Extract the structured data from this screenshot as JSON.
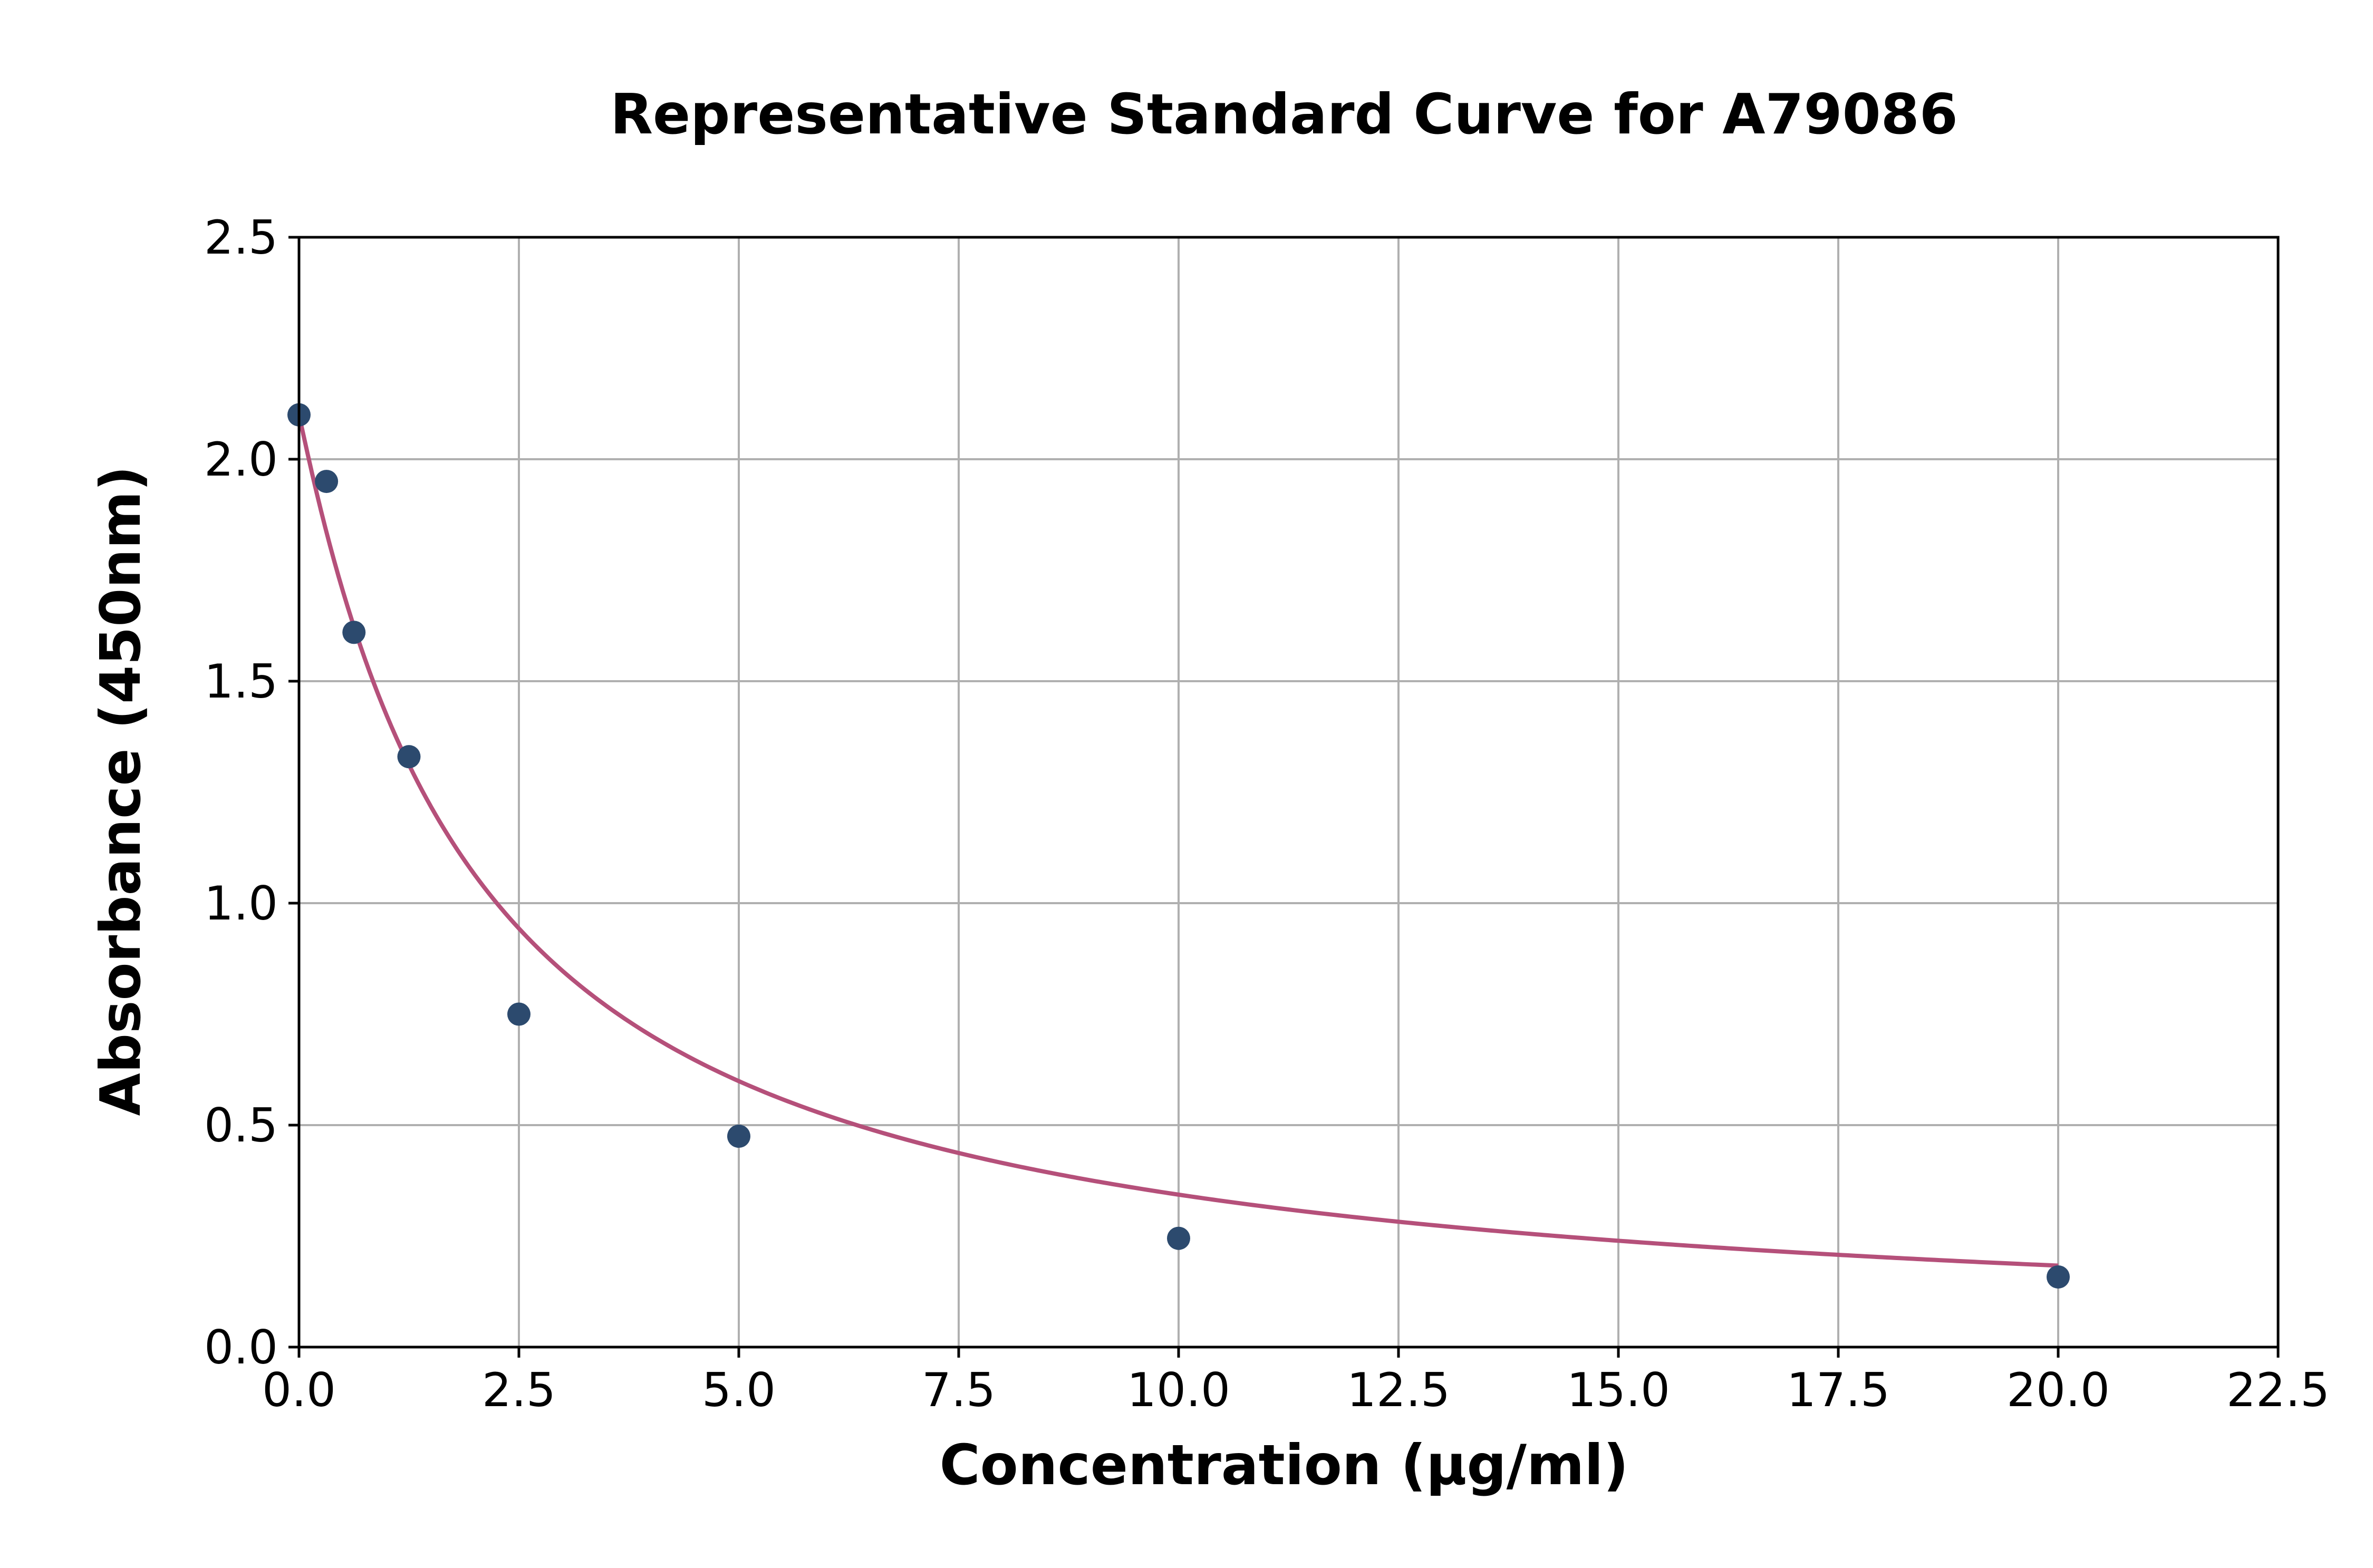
{
  "chart_data": {
    "type": "scatter",
    "title": "Representative Standard Curve for A79086",
    "xlabel": "Concentration (μg/ml)",
    "ylabel": "Absorbance (450nm)",
    "xlim": [
      0,
      22.5
    ],
    "ylim": [
      0,
      2.5
    ],
    "xticks": [
      "0.0",
      "2.5",
      "5.0",
      "7.5",
      "10.0",
      "12.5",
      "15.0",
      "17.5",
      "20.0",
      "22.5"
    ],
    "yticks": [
      "0.0",
      "0.5",
      "1.0",
      "1.5",
      "2.0",
      "2.5"
    ],
    "grid": true,
    "legend": "none",
    "series": [
      {
        "kind": "points",
        "color": "#2c4a6e",
        "x": [
          0,
          0.3125,
          0.625,
          1.25,
          2.5,
          5,
          10,
          20
        ],
        "y": [
          2.1,
          1.95,
          1.61,
          1.33,
          0.75,
          0.475,
          0.245,
          0.158
        ]
      },
      {
        "kind": "fitted-curve",
        "color": "#b5507a",
        "model": "4PL",
        "params": {
          "A": 2.1,
          "D": 0.0,
          "C": 2.05,
          "B": 1.03
        },
        "x_range": [
          0,
          20
        ]
      }
    ]
  }
}
